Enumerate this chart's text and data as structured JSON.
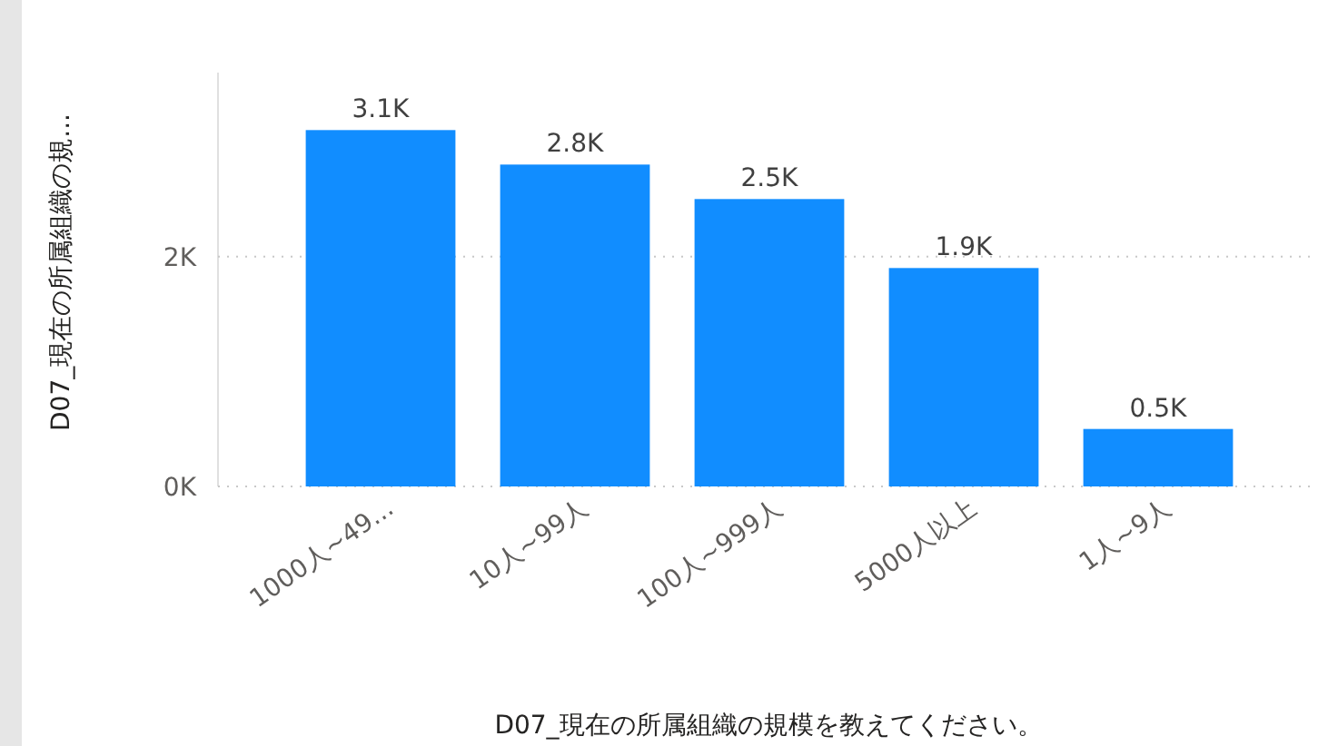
{
  "chart_data": {
    "type": "bar",
    "categories": [
      "1000人~49...",
      "10人~99人",
      "100人~999人",
      "5000人以上",
      "1人~9人"
    ],
    "values": [
      3100,
      2800,
      2500,
      1900,
      500
    ],
    "value_labels": [
      "3.1K",
      "2.8K",
      "2.5K",
      "1.9K",
      "0.5K"
    ],
    "color": "#118dff",
    "xlabel": "D07_現在の所属組織の規模を教えてください。",
    "ylabel": "D07_現在の所属組織の規...",
    "ylim": [
      0,
      3600
    ],
    "yticks": [
      {
        "value": 0,
        "label": "0K"
      },
      {
        "value": 2000,
        "label": "2K"
      }
    ],
    "grid": "y"
  }
}
